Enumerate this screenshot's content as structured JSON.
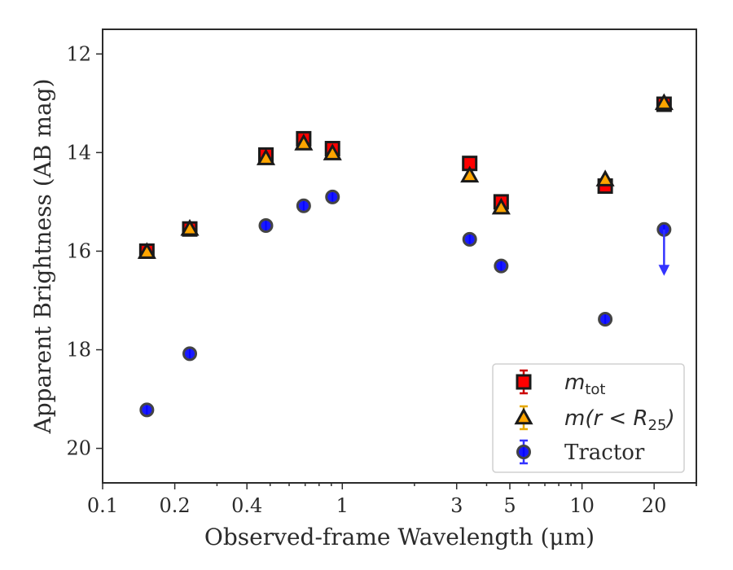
{
  "chart_data": {
    "type": "scatter",
    "xlabel": "Observed-frame Wavelength (μm)",
    "ylabel": "Apparent Brightness (AB mag)",
    "xscale": "log",
    "xlim": [
      0.1,
      30
    ],
    "ylim": [
      20.7,
      11.5
    ],
    "y_inverted": true,
    "x_ticks": [
      {
        "value": 0.1,
        "label": "0.1"
      },
      {
        "value": 0.2,
        "label": "0.2"
      },
      {
        "value": 0.4,
        "label": "0.4"
      },
      {
        "value": 1,
        "label": "1"
      },
      {
        "value": 3,
        "label": "3"
      },
      {
        "value": 5,
        "label": "5"
      },
      {
        "value": 10,
        "label": "10"
      },
      {
        "value": 20,
        "label": "20"
      }
    ],
    "y_ticks": [
      {
        "value": 12,
        "label": "12"
      },
      {
        "value": 14,
        "label": "14"
      },
      {
        "value": 16,
        "label": "16"
      },
      {
        "value": 18,
        "label": "18"
      },
      {
        "value": 20,
        "label": "20"
      }
    ],
    "legend_position": "bottom-right",
    "grid": false,
    "series": [
      {
        "name_main": "m",
        "name_sub": "tot",
        "marker": "square",
        "color": "#ff0000",
        "error_color": "#cc0000",
        "edge_color": "#1a1a1a",
        "x": [
          0.153,
          0.231,
          0.48,
          0.69,
          0.91,
          3.4,
          4.6,
          12.5,
          22.0
        ],
        "y": [
          16.0,
          15.55,
          14.05,
          13.72,
          13.92,
          14.22,
          15.0,
          14.68,
          13.02
        ]
      },
      {
        "name_main": "m(r < R",
        "name_sub": "25",
        "name_tail": ")",
        "marker": "triangle",
        "color": "#ffa500",
        "error_color": "#e6a800",
        "edge_color": "#1a1a1a",
        "x": [
          0.153,
          0.231,
          0.48,
          0.69,
          0.91,
          3.4,
          4.6,
          12.5,
          22.0
        ],
        "y": [
          16.02,
          15.55,
          14.12,
          13.82,
          14.02,
          14.47,
          15.12,
          14.55,
          13.0
        ]
      },
      {
        "name": "Tractor",
        "marker": "circle",
        "color": "#0000ff",
        "error_color": "#3333ff",
        "edge_color": "#444444",
        "x": [
          0.153,
          0.231,
          0.48,
          0.69,
          0.91,
          3.4,
          4.6,
          12.5,
          22.0
        ],
        "y": [
          19.22,
          18.08,
          15.48,
          15.08,
          14.9,
          15.76,
          16.3,
          17.38,
          15.56
        ],
        "upper_limit_index": 8,
        "upper_limit_to": 16.45
      }
    ]
  }
}
